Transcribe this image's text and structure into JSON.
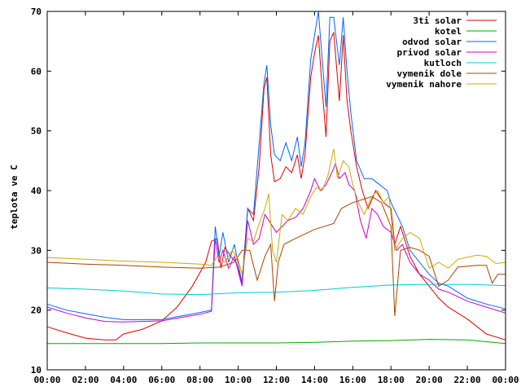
{
  "chart_data": {
    "type": "line",
    "title": "",
    "xlabel": "",
    "ylabel": "teplota ve C",
    "xlim": [
      0,
      24
    ],
    "ylim": [
      10,
      70
    ],
    "x_ticks": [
      0,
      2,
      4,
      6,
      8,
      10,
      12,
      14,
      16,
      18,
      20,
      22,
      24
    ],
    "x_tick_labels": [
      "00:00",
      "02:00",
      "04:00",
      "06:00",
      "08:00",
      "10:00",
      "12:00",
      "14:00",
      "16:00",
      "18:00",
      "20:00",
      "22:00",
      "00:00"
    ],
    "y_ticks": [
      10,
      20,
      30,
      40,
      50,
      60,
      70
    ],
    "y_tick_labels": [
      "10",
      "20",
      "30",
      "40",
      "50",
      "60",
      "70"
    ],
    "grid": false,
    "legend_position": "top-right",
    "series": [
      {
        "name": "3ti solar",
        "color": "#dd0000",
        "points": [
          [
            0,
            17.2
          ],
          [
            1,
            16.2
          ],
          [
            2,
            15.3
          ],
          [
            3,
            15.0
          ],
          [
            3.6,
            15.0
          ],
          [
            4,
            16.0
          ],
          [
            5,
            16.8
          ],
          [
            6,
            18.2
          ],
          [
            6.8,
            20.5
          ],
          [
            7.6,
            24
          ],
          [
            8.3,
            28
          ],
          [
            8.6,
            31.5
          ],
          [
            8.9,
            32.0
          ],
          [
            9.1,
            27
          ],
          [
            9.3,
            30.5
          ],
          [
            9.6,
            29
          ],
          [
            9.9,
            28
          ],
          [
            10.2,
            24.5
          ],
          [
            10.5,
            37
          ],
          [
            10.8,
            35
          ],
          [
            11.1,
            44
          ],
          [
            11.35,
            57
          ],
          [
            11.5,
            59
          ],
          [
            11.7,
            46
          ],
          [
            11.9,
            41.5
          ],
          [
            12.2,
            42
          ],
          [
            12.5,
            44
          ],
          [
            12.8,
            43
          ],
          [
            13.1,
            46
          ],
          [
            13.3,
            42
          ],
          [
            13.5,
            46
          ],
          [
            13.8,
            59
          ],
          [
            14.0,
            63
          ],
          [
            14.2,
            66
          ],
          [
            14.4,
            57
          ],
          [
            14.6,
            49
          ],
          [
            14.8,
            65
          ],
          [
            15.0,
            66.5
          ],
          [
            15.3,
            55
          ],
          [
            15.5,
            66
          ],
          [
            15.7,
            55
          ],
          [
            15.9,
            50
          ],
          [
            16.2,
            44
          ],
          [
            16.5,
            40
          ],
          [
            16.8,
            37
          ],
          [
            17.2,
            40
          ],
          [
            17.6,
            38
          ],
          [
            18.0,
            37
          ],
          [
            18.2,
            31
          ],
          [
            18.5,
            34
          ],
          [
            19.0,
            29
          ],
          [
            19.5,
            26
          ],
          [
            20.0,
            24.0
          ],
          [
            20.5,
            22.0
          ],
          [
            21.0,
            20.5
          ],
          [
            22.0,
            18.5
          ],
          [
            23.0,
            16.0
          ],
          [
            24.0,
            15.0
          ]
        ]
      },
      {
        "name": "kotel",
        "color": "#00aa00",
        "points": [
          [
            0,
            14.4
          ],
          [
            2,
            14.4
          ],
          [
            4,
            14.4
          ],
          [
            6,
            14.4
          ],
          [
            8,
            14.5
          ],
          [
            10,
            14.5
          ],
          [
            12,
            14.5
          ],
          [
            14,
            14.6
          ],
          [
            16,
            14.8
          ],
          [
            18,
            14.9
          ],
          [
            20,
            15.1
          ],
          [
            22,
            15.0
          ],
          [
            24,
            14.4
          ]
        ]
      },
      {
        "name": "odvod solar",
        "color": "#0066ff",
        "points": [
          [
            0,
            21.0
          ],
          [
            1,
            20.0
          ],
          [
            2,
            19.4
          ],
          [
            3,
            18.8
          ],
          [
            4,
            18.4
          ],
          [
            6,
            18.4
          ],
          [
            8,
            19.6
          ],
          [
            8.6,
            20
          ],
          [
            8.8,
            34
          ],
          [
            9.0,
            29
          ],
          [
            9.2,
            33
          ],
          [
            9.5,
            28
          ],
          [
            9.8,
            31
          ],
          [
            10.2,
            24.5
          ],
          [
            10.5,
            37
          ],
          [
            10.8,
            36
          ],
          [
            11.1,
            48
          ],
          [
            11.35,
            58
          ],
          [
            11.5,
            61
          ],
          [
            11.7,
            51
          ],
          [
            11.9,
            46
          ],
          [
            12.2,
            45
          ],
          [
            12.5,
            48
          ],
          [
            12.8,
            45
          ],
          [
            13.1,
            49
          ],
          [
            13.3,
            44
          ],
          [
            13.5,
            48
          ],
          [
            13.8,
            62
          ],
          [
            14.0,
            66
          ],
          [
            14.2,
            70
          ],
          [
            14.4,
            62
          ],
          [
            14.6,
            54
          ],
          [
            14.8,
            69
          ],
          [
            15.0,
            69
          ],
          [
            15.3,
            61
          ],
          [
            15.5,
            69
          ],
          [
            15.7,
            60
          ],
          [
            15.9,
            53
          ],
          [
            16.2,
            45
          ],
          [
            16.6,
            42
          ],
          [
            17.0,
            42
          ],
          [
            17.4,
            41
          ],
          [
            17.8,
            40
          ],
          [
            18.0,
            38
          ],
          [
            18.3,
            36
          ],
          [
            18.6,
            34
          ],
          [
            19.0,
            30
          ],
          [
            19.5,
            28
          ],
          [
            20.0,
            26
          ],
          [
            20.5,
            24.5
          ],
          [
            21.0,
            24
          ],
          [
            22.0,
            22
          ],
          [
            23.0,
            21
          ],
          [
            24.0,
            20.2
          ]
        ]
      },
      {
        "name": "privod solar",
        "color": "#cc00cc",
        "points": [
          [
            0,
            20.5
          ],
          [
            1,
            19.5
          ],
          [
            2,
            18.7
          ],
          [
            3,
            18.1
          ],
          [
            4,
            18.0
          ],
          [
            6,
            18.2
          ],
          [
            8,
            19.3
          ],
          [
            8.6,
            19.8
          ],
          [
            8.8,
            32
          ],
          [
            9.0,
            28
          ],
          [
            9.2,
            30
          ],
          [
            9.5,
            27
          ],
          [
            9.8,
            29
          ],
          [
            10.2,
            24.0
          ],
          [
            10.5,
            35
          ],
          [
            10.8,
            31
          ],
          [
            11.1,
            32
          ],
          [
            11.4,
            36
          ],
          [
            11.7,
            34.5
          ],
          [
            12.0,
            33
          ],
          [
            12.3,
            34
          ],
          [
            12.6,
            35
          ],
          [
            13.0,
            35.5
          ],
          [
            13.4,
            37
          ],
          [
            13.8,
            40
          ],
          [
            14.0,
            42
          ],
          [
            14.3,
            40
          ],
          [
            14.6,
            41
          ],
          [
            14.9,
            43
          ],
          [
            15.1,
            44.5
          ],
          [
            15.3,
            42
          ],
          [
            15.6,
            43
          ],
          [
            15.8,
            41
          ],
          [
            16.1,
            40
          ],
          [
            16.4,
            35
          ],
          [
            16.7,
            32
          ],
          [
            17.0,
            37
          ],
          [
            17.3,
            36
          ],
          [
            17.6,
            34
          ],
          [
            18.0,
            33
          ],
          [
            18.3,
            30
          ],
          [
            18.6,
            31
          ],
          [
            19.0,
            28
          ],
          [
            19.5,
            26
          ],
          [
            20.0,
            25
          ],
          [
            20.5,
            23.5
          ],
          [
            21.0,
            23
          ],
          [
            22.0,
            21.5
          ],
          [
            23.0,
            20.5
          ],
          [
            24.0,
            19.5
          ]
        ]
      },
      {
        "name": "kutloch",
        "color": "#00cccc",
        "points": [
          [
            0,
            23.7
          ],
          [
            2,
            23.5
          ],
          [
            4,
            23.2
          ],
          [
            6,
            22.7
          ],
          [
            8,
            22.6
          ],
          [
            10,
            22.9
          ],
          [
            12,
            23.0
          ],
          [
            14,
            23.3
          ],
          [
            16,
            23.8
          ],
          [
            18,
            24.2
          ],
          [
            20,
            24.3
          ],
          [
            22,
            24.3
          ],
          [
            24,
            24.1
          ]
        ]
      },
      {
        "name": "vymenik dole",
        "color": "#aa4400",
        "points": [
          [
            0,
            28.0
          ],
          [
            2,
            27.7
          ],
          [
            4,
            27.5
          ],
          [
            6,
            27.2
          ],
          [
            8,
            27.0
          ],
          [
            9,
            27.2
          ],
          [
            9.8,
            28
          ],
          [
            10.2,
            30
          ],
          [
            10.6,
            30
          ],
          [
            11.0,
            25
          ],
          [
            11.4,
            29
          ],
          [
            11.7,
            31
          ],
          [
            11.9,
            21.5
          ],
          [
            12.1,
            28
          ],
          [
            12.4,
            31
          ],
          [
            13.0,
            32
          ],
          [
            14.0,
            33.5
          ],
          [
            15.0,
            34.5
          ],
          [
            15.4,
            37
          ],
          [
            16.0,
            38
          ],
          [
            16.5,
            38.5
          ],
          [
            17.0,
            39
          ],
          [
            17.5,
            38
          ],
          [
            18.0,
            34
          ],
          [
            18.2,
            19
          ],
          [
            18.5,
            30
          ],
          [
            19.0,
            30.5
          ],
          [
            19.5,
            30
          ],
          [
            20.0,
            29
          ],
          [
            20.5,
            24
          ],
          [
            21.0,
            25
          ],
          [
            21.5,
            27.2
          ],
          [
            22.5,
            27.5
          ],
          [
            23.0,
            27.5
          ],
          [
            23.3,
            24.5
          ],
          [
            23.6,
            26
          ],
          [
            24.0,
            26
          ]
        ]
      },
      {
        "name": "vymenik nahore",
        "color": "#ccaa00",
        "points": [
          [
            0,
            28.8
          ],
          [
            2,
            28.5
          ],
          [
            4,
            28.2
          ],
          [
            6,
            28.0
          ],
          [
            8,
            27.7
          ],
          [
            8.6,
            27.5
          ],
          [
            8.9,
            29
          ],
          [
            9.3,
            28
          ],
          [
            9.7,
            30
          ],
          [
            10.0,
            28.5
          ],
          [
            10.2,
            26
          ],
          [
            10.5,
            32
          ],
          [
            10.8,
            31.5
          ],
          [
            11.1,
            34.5
          ],
          [
            11.4,
            37
          ],
          [
            11.6,
            39.5
          ],
          [
            11.8,
            30
          ],
          [
            12.0,
            28
          ],
          [
            12.3,
            36
          ],
          [
            12.6,
            35
          ],
          [
            13.0,
            37
          ],
          [
            13.4,
            36
          ],
          [
            13.8,
            39
          ],
          [
            14.1,
            40.5
          ],
          [
            14.4,
            40
          ],
          [
            14.7,
            42.5
          ],
          [
            15.0,
            47
          ],
          [
            15.2,
            42
          ],
          [
            15.5,
            45
          ],
          [
            15.8,
            44
          ],
          [
            16.0,
            41
          ],
          [
            16.3,
            38
          ],
          [
            16.6,
            36
          ],
          [
            17.0,
            39
          ],
          [
            17.3,
            40
          ],
          [
            17.6,
            38
          ],
          [
            17.9,
            39
          ],
          [
            18.2,
            30
          ],
          [
            18.6,
            32
          ],
          [
            19.0,
            33
          ],
          [
            19.5,
            32
          ],
          [
            20.0,
            27
          ],
          [
            20.5,
            28
          ],
          [
            21.0,
            27
          ],
          [
            21.5,
            28.5
          ],
          [
            22.5,
            29.2
          ],
          [
            23.0,
            29
          ],
          [
            23.5,
            27.8
          ],
          [
            24.0,
            28.0
          ]
        ]
      }
    ]
  }
}
